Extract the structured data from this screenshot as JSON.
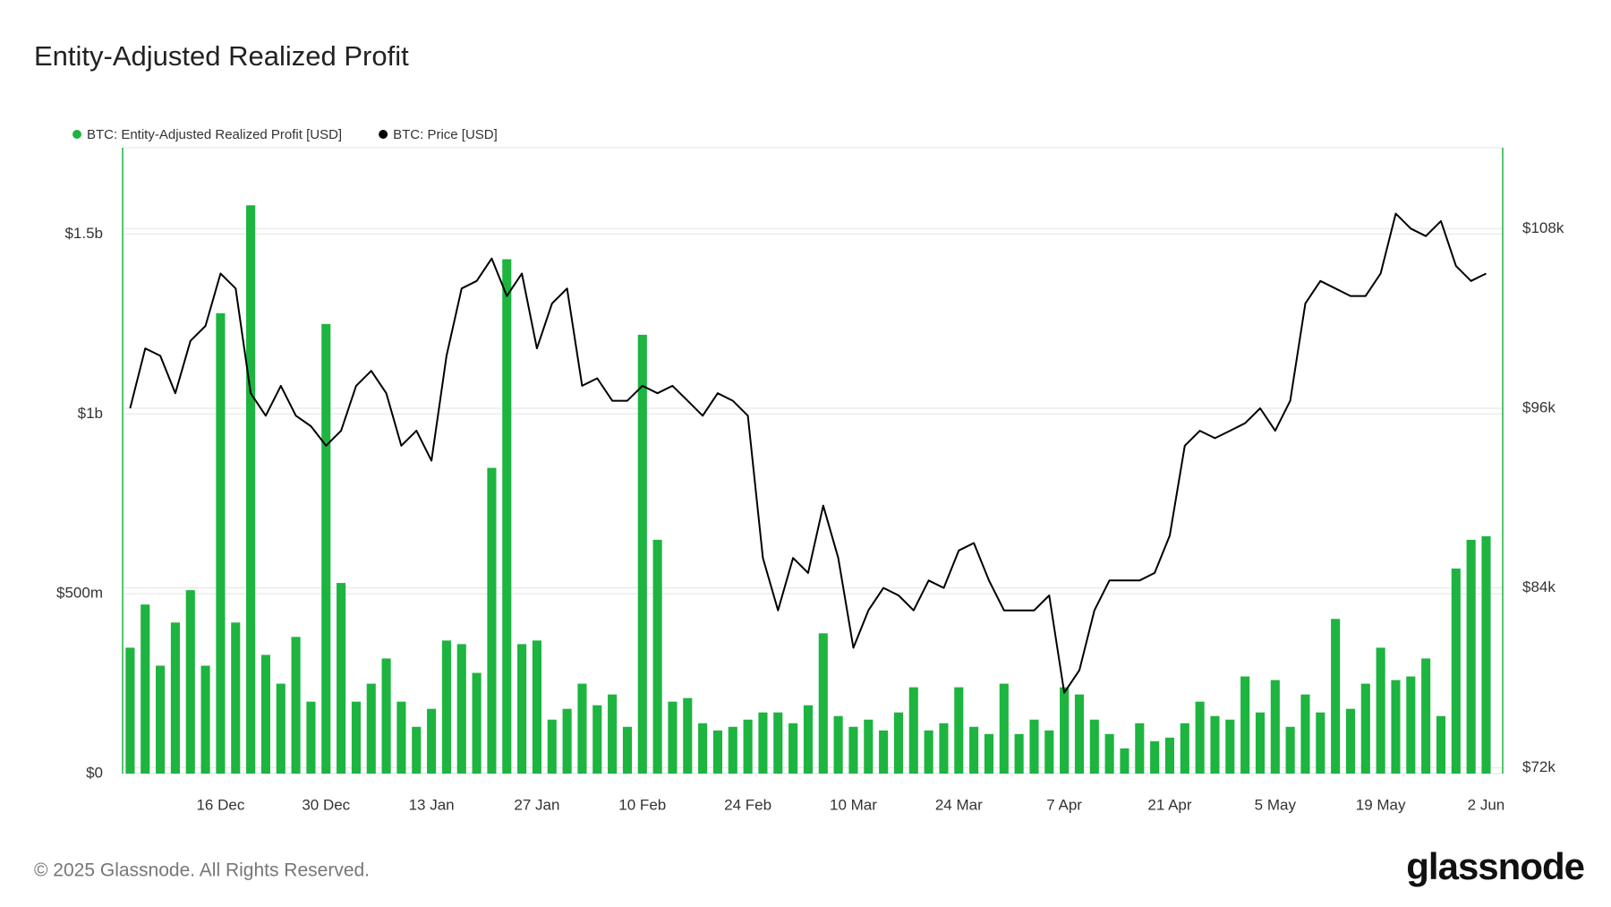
{
  "chart_data": {
    "type": "bar",
    "title": "Entity-Adjusted Realized Profit",
    "footer": "© 2025 Glassnode. All Rights Reserved.",
    "brand": "glassnode",
    "categories": [
      null,
      null,
      null,
      null,
      null,
      null,
      "16 Dec",
      null,
      null,
      null,
      null,
      null,
      null,
      "30 Dec",
      null,
      null,
      null,
      null,
      null,
      null,
      "13 Jan",
      null,
      null,
      null,
      null,
      null,
      null,
      "27 Jan",
      null,
      null,
      null,
      null,
      null,
      null,
      "10 Feb",
      null,
      null,
      null,
      null,
      null,
      null,
      "24 Feb",
      null,
      null,
      null,
      null,
      null,
      null,
      "10 Mar",
      null,
      null,
      null,
      null,
      null,
      null,
      "24 Mar",
      null,
      null,
      null,
      null,
      null,
      null,
      "7 Apr",
      null,
      null,
      null,
      null,
      null,
      null,
      "21 Apr",
      null,
      null,
      null,
      null,
      null,
      null,
      "5 May",
      null,
      null,
      null,
      null,
      null,
      null,
      "19 May",
      null,
      null,
      null,
      null,
      null,
      null,
      "2 Jun"
    ],
    "series": [
      {
        "name": "BTC: Entity-Adjusted Realized Profit [USD]",
        "type": "bar",
        "color": "#1db440",
        "values": [
          350000000,
          470000000,
          300000000,
          420000000,
          510000000,
          300000000,
          1280000000,
          420000000,
          1580000000,
          330000000,
          250000000,
          380000000,
          200000000,
          1250000000,
          530000000,
          200000000,
          250000000,
          320000000,
          200000000,
          130000000,
          180000000,
          370000000,
          360000000,
          280000000,
          850000000,
          1430000000,
          360000000,
          370000000,
          150000000,
          180000000,
          250000000,
          190000000,
          220000000,
          130000000,
          1220000000,
          650000000,
          200000000,
          210000000,
          140000000,
          120000000,
          130000000,
          150000000,
          170000000,
          170000000,
          140000000,
          190000000,
          390000000,
          160000000,
          130000000,
          150000000,
          120000000,
          170000000,
          240000000,
          120000000,
          140000000,
          240000000,
          130000000,
          110000000,
          250000000,
          110000000,
          150000000,
          120000000,
          240000000,
          220000000,
          150000000,
          110000000,
          70000000,
          140000000,
          90000000,
          100000000,
          140000000,
          200000000,
          160000000,
          150000000,
          270000000,
          170000000,
          260000000,
          130000000,
          220000000,
          170000000,
          430000000,
          180000000,
          250000000,
          350000000,
          260000000,
          270000000,
          320000000,
          160000000,
          570000000,
          650000000,
          660000000
        ]
      },
      {
        "name": "BTC: Price [USD]",
        "type": "line",
        "axis": "y2",
        "color": "#000000",
        "values": [
          96000,
          100000,
          99500,
          97000,
          100500,
          101500,
          105000,
          104000,
          97000,
          95500,
          97500,
          95500,
          94800,
          93500,
          94500,
          97500,
          98500,
          97000,
          93500,
          94500,
          92500,
          99500,
          104000,
          104500,
          106000,
          103500,
          105000,
          100000,
          103000,
          104000,
          97500,
          98000,
          96500,
          96500,
          97500,
          97000,
          97500,
          96500,
          95500,
          97000,
          96500,
          95500,
          86000,
          82500,
          86000,
          85000,
          89500,
          86000,
          80000,
          82500,
          84000,
          83500,
          82500,
          84500,
          84000,
          86500,
          87000,
          84500,
          82500,
          82500,
          82500,
          83500,
          77000,
          78500,
          82500,
          84500,
          84500,
          84500,
          85000,
          87500,
          93500,
          94500,
          94000,
          94500,
          95000,
          96000,
          94500,
          96500,
          103000,
          104500,
          104000,
          103500,
          103500,
          105000,
          109000,
          108000,
          107500,
          108500,
          105500,
          104500,
          105000
        ]
      }
    ],
    "ylim": [
      0,
      1740000000
    ],
    "yticks": [
      {
        "value": 0,
        "label": "$0"
      },
      {
        "value": 500000000,
        "label": "$500m"
      },
      {
        "value": 1000000000,
        "label": "$1b"
      },
      {
        "value": 1500000000,
        "label": "$1.5b"
      }
    ],
    "y2lim": [
      71600,
      113400
    ],
    "y2ticks": [
      {
        "value": 72000,
        "label": "$72k"
      },
      {
        "value": 84000,
        "label": "$84k"
      },
      {
        "value": 96000,
        "label": "$96k"
      },
      {
        "value": 108000,
        "label": "$108k"
      }
    ],
    "grid": true,
    "legend": "top-left"
  }
}
